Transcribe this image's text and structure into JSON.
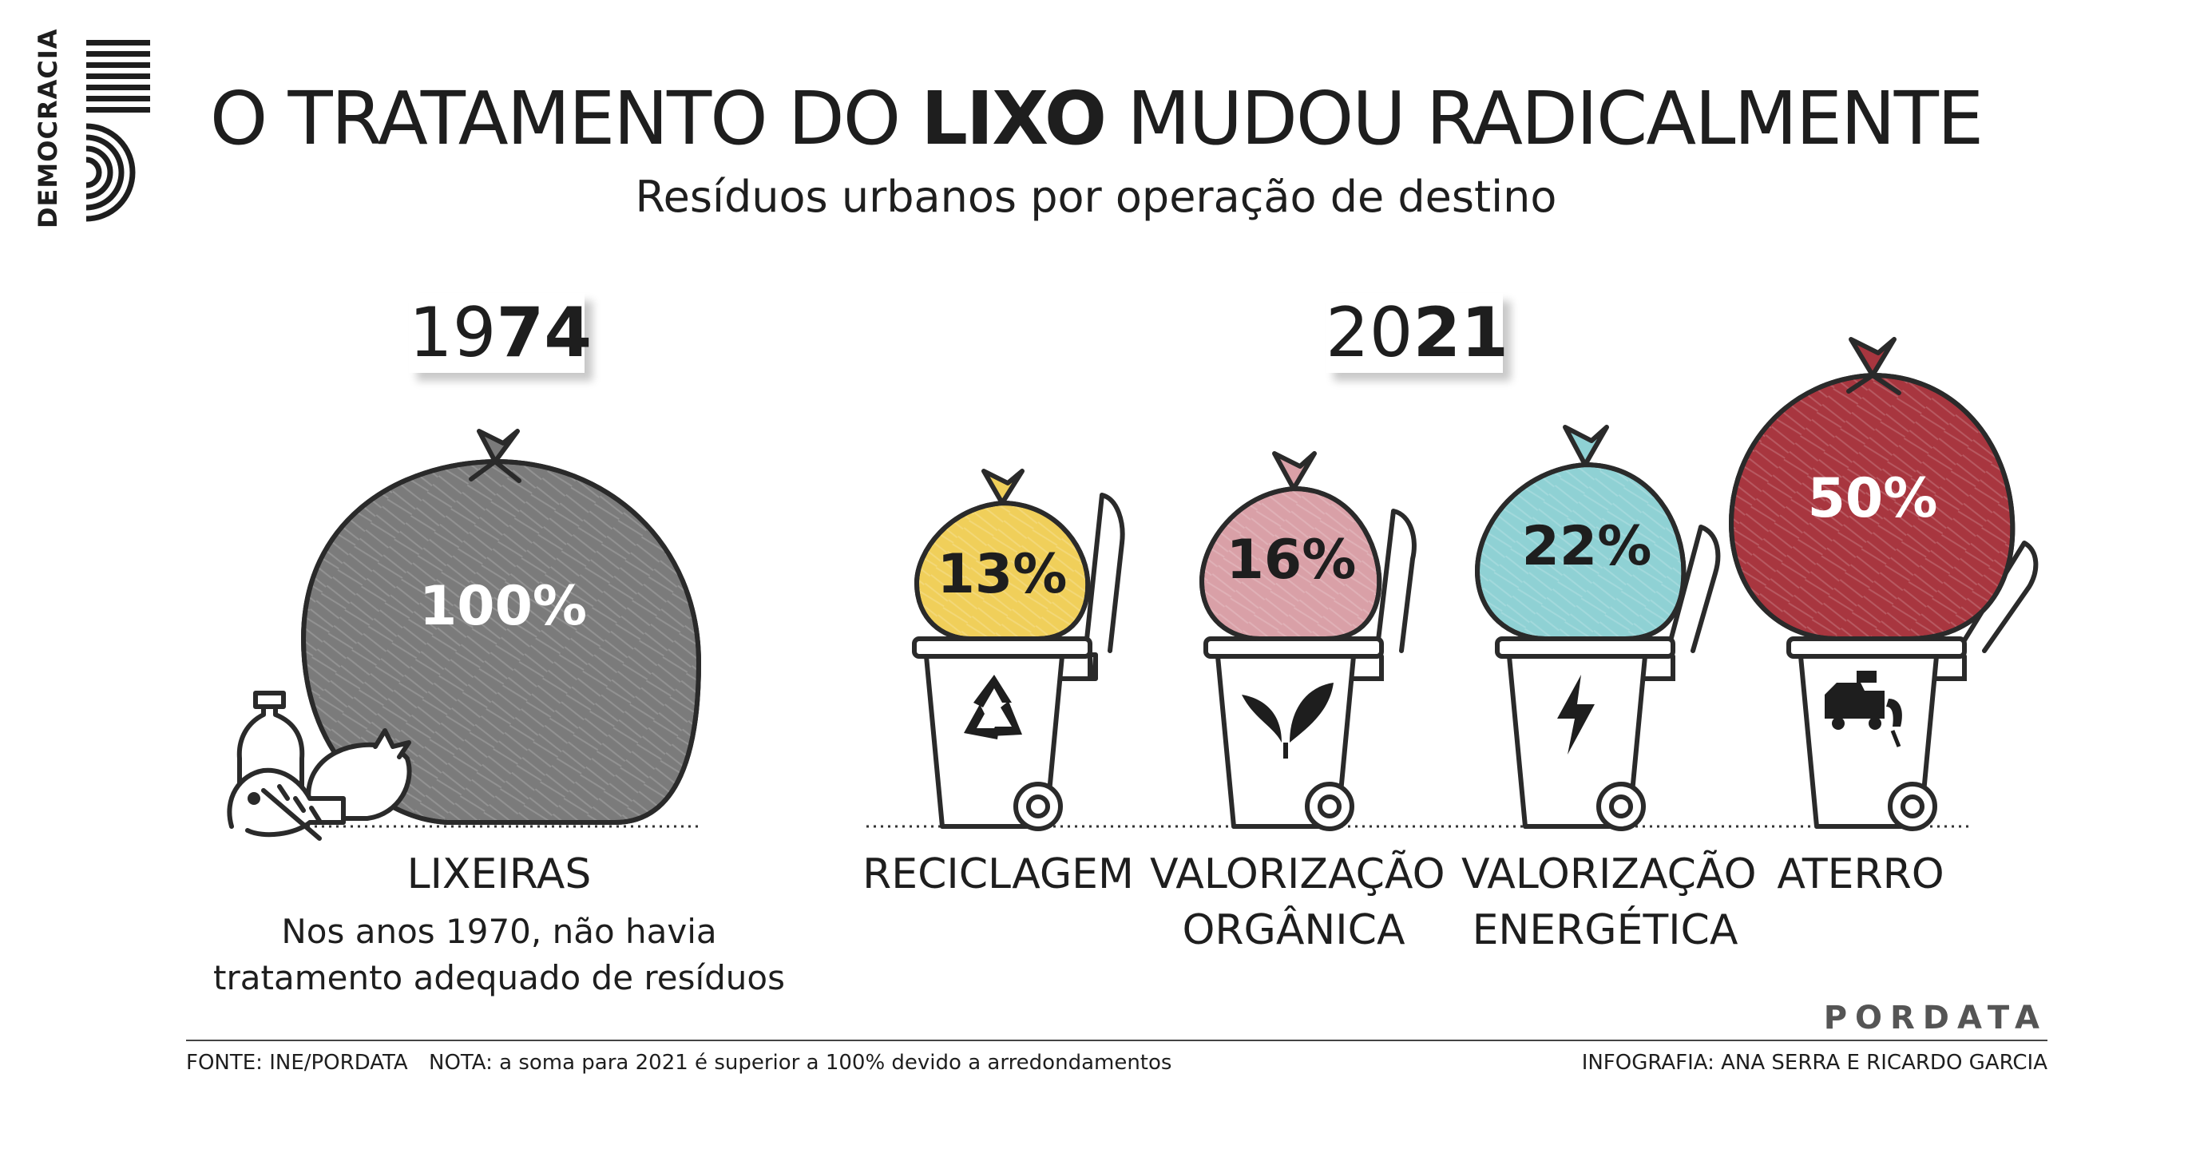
{
  "logo": {
    "text": "DEMOCRACIA"
  },
  "title": {
    "pre": "O TRATAMENTO DO ",
    "bold": "LIXO",
    "post": " MUDOU RADICALMENTE"
  },
  "subtitle": "Resíduos urbanos por operação de destino",
  "years": [
    {
      "light": "19",
      "bold": "74"
    },
    {
      "light": "20",
      "bold": "21"
    }
  ],
  "chart_data": {
    "type": "pictogram",
    "title": "O TRATAMENTO DO LIXO MUDOU RADICALMENTE",
    "subtitle": "Resíduos urbanos por operação de destino",
    "unit": "%",
    "series": [
      {
        "name": "1974",
        "categories": [
          "LIXEIRAS"
        ],
        "values": [
          100
        ]
      },
      {
        "name": "2021",
        "categories": [
          "RECICLAGEM",
          "VALORIZAÇÃO ORGÂNICA",
          "VALORIZAÇÃO ENERGÉTICA",
          "ATERRO"
        ],
        "values": [
          13,
          16,
          22,
          50
        ]
      }
    ],
    "bags": [
      {
        "label": "100%",
        "value": 100,
        "color": "#7b7b7b",
        "text_color": "#ffffff"
      },
      {
        "label": "13%",
        "value": 13,
        "color": "#f0cf5a",
        "text_color": "#1e1e1e"
      },
      {
        "label": "16%",
        "value": 16,
        "color": "#d9a0a7",
        "text_color": "#1e1e1e"
      },
      {
        "label": "22%",
        "value": 22,
        "color": "#8fd1d4",
        "text_color": "#1e1e1e"
      },
      {
        "label": "50%",
        "value": 50,
        "color": "#a8363f",
        "text_color": "#ffffff"
      }
    ],
    "bin_icons": [
      "recycle-icon",
      "leaf-icon",
      "lightning-icon",
      "landfill-truck-icon"
    ]
  },
  "categories": {
    "lixeiras": "LIXEIRAS",
    "lixeiras_note": "Nos anos 1970, não havia tratamento adequado de resíduos",
    "reciclagem": "RECICLAGEM",
    "organica": [
      "VALORIZAÇÃO",
      "ORGÂNICA"
    ],
    "energetica": [
      "VALORIZAÇÃO",
      "ENERGÉTICA"
    ],
    "aterro": "ATERRO"
  },
  "footer": {
    "source": "FONTE: INE/PORDATA",
    "note": "NOTA: a soma para 2021 é superior a 100% devido a arredondamentos",
    "credit": "INFOGRAFIA: ANA SERRA E RICARDO GARCIA",
    "brand": "PORDATA"
  }
}
